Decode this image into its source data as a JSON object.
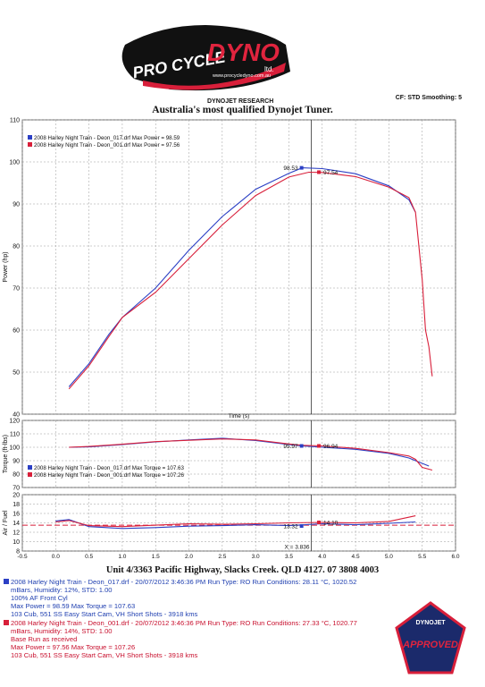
{
  "header": {
    "logo_text": "PRO CYCLE DYNO",
    "logo_sub": "ltd.",
    "logo_url": "www.procycledyno.com.au",
    "research": "DYNOJET RESEARCH",
    "cf_info": "CF: STD  Smoothing: 5",
    "title": "Australia's most qualified Dynojet Tuner."
  },
  "colors": {
    "run1": "#2b3fc4",
    "run2": "#d81f3a",
    "grid": "#9a9a9a"
  },
  "chart_data": [
    {
      "type": "line",
      "ylabel": "Power (hp)",
      "ylim": [
        40,
        110
      ],
      "yticks": [
        "40",
        "50",
        "60",
        "70",
        "80",
        "90",
        "100",
        "110"
      ],
      "legend": [
        "2008 Harley Night Train - Deon_017.drf Max Power = 98.59",
        "2008 Harley Night Train - Deon_001.drf Max Power = 97.56"
      ],
      "legend_position": "top-left",
      "series": [
        {
          "name": "2008 Harley Night Train - Deon_017.drf",
          "x": [
            0.2,
            0.5,
            0.8,
            1.0,
            1.5,
            2.0,
            2.5,
            3.0,
            3.5,
            3.7,
            4.0,
            4.5,
            5.0,
            5.3,
            5.4
          ],
          "y": [
            46.5,
            52,
            59,
            63,
            70,
            79,
            87,
            93.5,
            97.3,
            98.59,
            98.4,
            97.2,
            94.3,
            91,
            88
          ]
        },
        {
          "name": "2008 Harley Night Train - Deon_001.drf",
          "x": [
            0.2,
            0.5,
            0.8,
            1.0,
            1.5,
            2.0,
            2.5,
            3.0,
            3.5,
            3.8,
            4.0,
            4.5,
            5.0,
            5.3,
            5.4,
            5.5,
            5.55,
            5.6,
            5.65
          ],
          "y": [
            46,
            51.5,
            58.5,
            63,
            69,
            77,
            85,
            92,
            96.4,
            97.56,
            97.5,
            96.5,
            94,
            91.5,
            88,
            72,
            60,
            56,
            49
          ]
        }
      ],
      "annotations": [
        {
          "label": "98.53",
          "x": 3.69,
          "y": 98.59,
          "series": 0
        },
        {
          "label": "97.54",
          "x": 3.95,
          "y": 97.56,
          "series": 1
        }
      ]
    },
    {
      "type": "line",
      "ylabel": "Torque (ft-lbs)",
      "ylim": [
        70,
        120
      ],
      "yticks": [
        "70",
        "80",
        "90",
        "100",
        "110",
        "120"
      ],
      "legend": [
        "2008 Harley Night Train - Deon_017.drf Max Torque = 107.63",
        "2008 Harley Night Train - Deon_001.drf Max Torque = 107.26"
      ],
      "legend_position": "bottom-left",
      "series": [
        {
          "name": "2008 Harley Night Train - Deon_017.drf",
          "x": [
            0.2,
            0.5,
            1.0,
            1.5,
            2.0,
            2.5,
            3.0,
            3.5,
            3.7,
            4.0,
            4.5,
            5.0,
            5.3,
            5.4,
            5.6
          ],
          "y": [
            100,
            100.3,
            102,
            104,
            105.5,
            106.7,
            105,
            102,
            101,
            100,
            98.5,
            95.5,
            92,
            90,
            86
          ]
        },
        {
          "name": "2008 Harley Night Train - Deon_001.drf",
          "x": [
            0.2,
            0.5,
            1.0,
            1.5,
            2.0,
            2.5,
            3.0,
            3.5,
            3.7,
            4.0,
            4.5,
            5.0,
            5.3,
            5.4,
            5.5,
            5.65
          ],
          "y": [
            100,
            100.6,
            102.3,
            104.2,
            105.2,
            106.2,
            105.5,
            102.5,
            101.5,
            101,
            99.2,
            96,
            93.5,
            91,
            85,
            83
          ]
        }
      ],
      "annotations": [
        {
          "label": "95.97",
          "x": 3.69,
          "y": 101,
          "series": 0
        },
        {
          "label": "96.94",
          "x": 3.95,
          "y": 101,
          "series": 1
        }
      ]
    },
    {
      "type": "line",
      "ylabel": "Air / Fuel",
      "ylim": [
        8,
        20
      ],
      "yticks": [
        "8",
        "10",
        "12",
        "14",
        "16",
        "18",
        "20"
      ],
      "xlabel": "Time (s)",
      "xlim": [
        -0.5,
        6.0
      ],
      "xticks": [
        "-0.5",
        "0.0",
        "0.5",
        "1.0",
        "1.5",
        "2.0",
        "2.5",
        "3.0",
        "3.5",
        "4.0",
        "4.5",
        "5.0",
        "5.5",
        "6.0"
      ],
      "reference_line": 13.5,
      "series": [
        {
          "name": "2008 Harley Night Train - Deon_017.drf",
          "x": [
            0.0,
            0.2,
            0.5,
            1.0,
            1.5,
            2.0,
            2.5,
            3.0,
            3.5,
            4.0,
            4.5,
            5.0,
            5.4
          ],
          "y": [
            14.4,
            14.7,
            13.2,
            12.8,
            13.0,
            13.3,
            13.4,
            13.6,
            13.4,
            13.8,
            13.6,
            13.9,
            14.2
          ]
        },
        {
          "name": "2008 Harley Night Train - Deon_001.drf",
          "x": [
            0.0,
            0.2,
            0.5,
            1.0,
            1.5,
            2.0,
            2.5,
            3.0,
            3.5,
            4.0,
            4.5,
            5.0,
            5.4
          ],
          "y": [
            14.2,
            14.5,
            13.4,
            13.2,
            13.5,
            13.8,
            13.7,
            13.8,
            14.0,
            14.1,
            14.0,
            14.3,
            15.5
          ]
        }
      ],
      "annotations": [
        {
          "label": "13.32",
          "x": 3.69,
          "y": 13.32,
          "series": 0
        },
        {
          "label": "14.10",
          "x": 3.95,
          "y": 14.1,
          "series": 1
        },
        {
          "label": "X = 3.836",
          "x": 3.836,
          "y": 9.0,
          "series": -1
        }
      ],
      "cursor_x": 3.836
    }
  ],
  "footer": {
    "address": "Unit 4/3363 Pacific Highway, Slacks Creek. QLD 4127. 07 3808 4003",
    "run1": [
      "2008 Harley Night Train - Deon_017.drf - 20/07/2012 3:46:36 PM  Run Type: RO  Run Conditions: 28.11 °C, 1020.52",
      "mBars,  Humidity:  12%, STD: 1.00",
      "100% AF Front Cyl",
      "Max Power = 98.59  Max Torque = 107.63",
      "103 Cub, 551 SS Easy Start Cam, VH Short Shots - 3918 kms"
    ],
    "run2": [
      "2008 Harley Night Train - Deon_001.drf - 20/07/2012 3:46:36 PM  Run Type: RO  Run Conditions: 27.33 °C, 1020.77",
      "mBars,  Humidity:  14%, STD: 1.00",
      "Base Run as received",
      "Max Power = 97.56  Max Torque = 107.26",
      "103 Cub, 551 SS Easy Start Cam, VH Short Shots - 3918 kms"
    ],
    "badge_text": "APPROVED",
    "badge_sub": "DYNOJET"
  }
}
